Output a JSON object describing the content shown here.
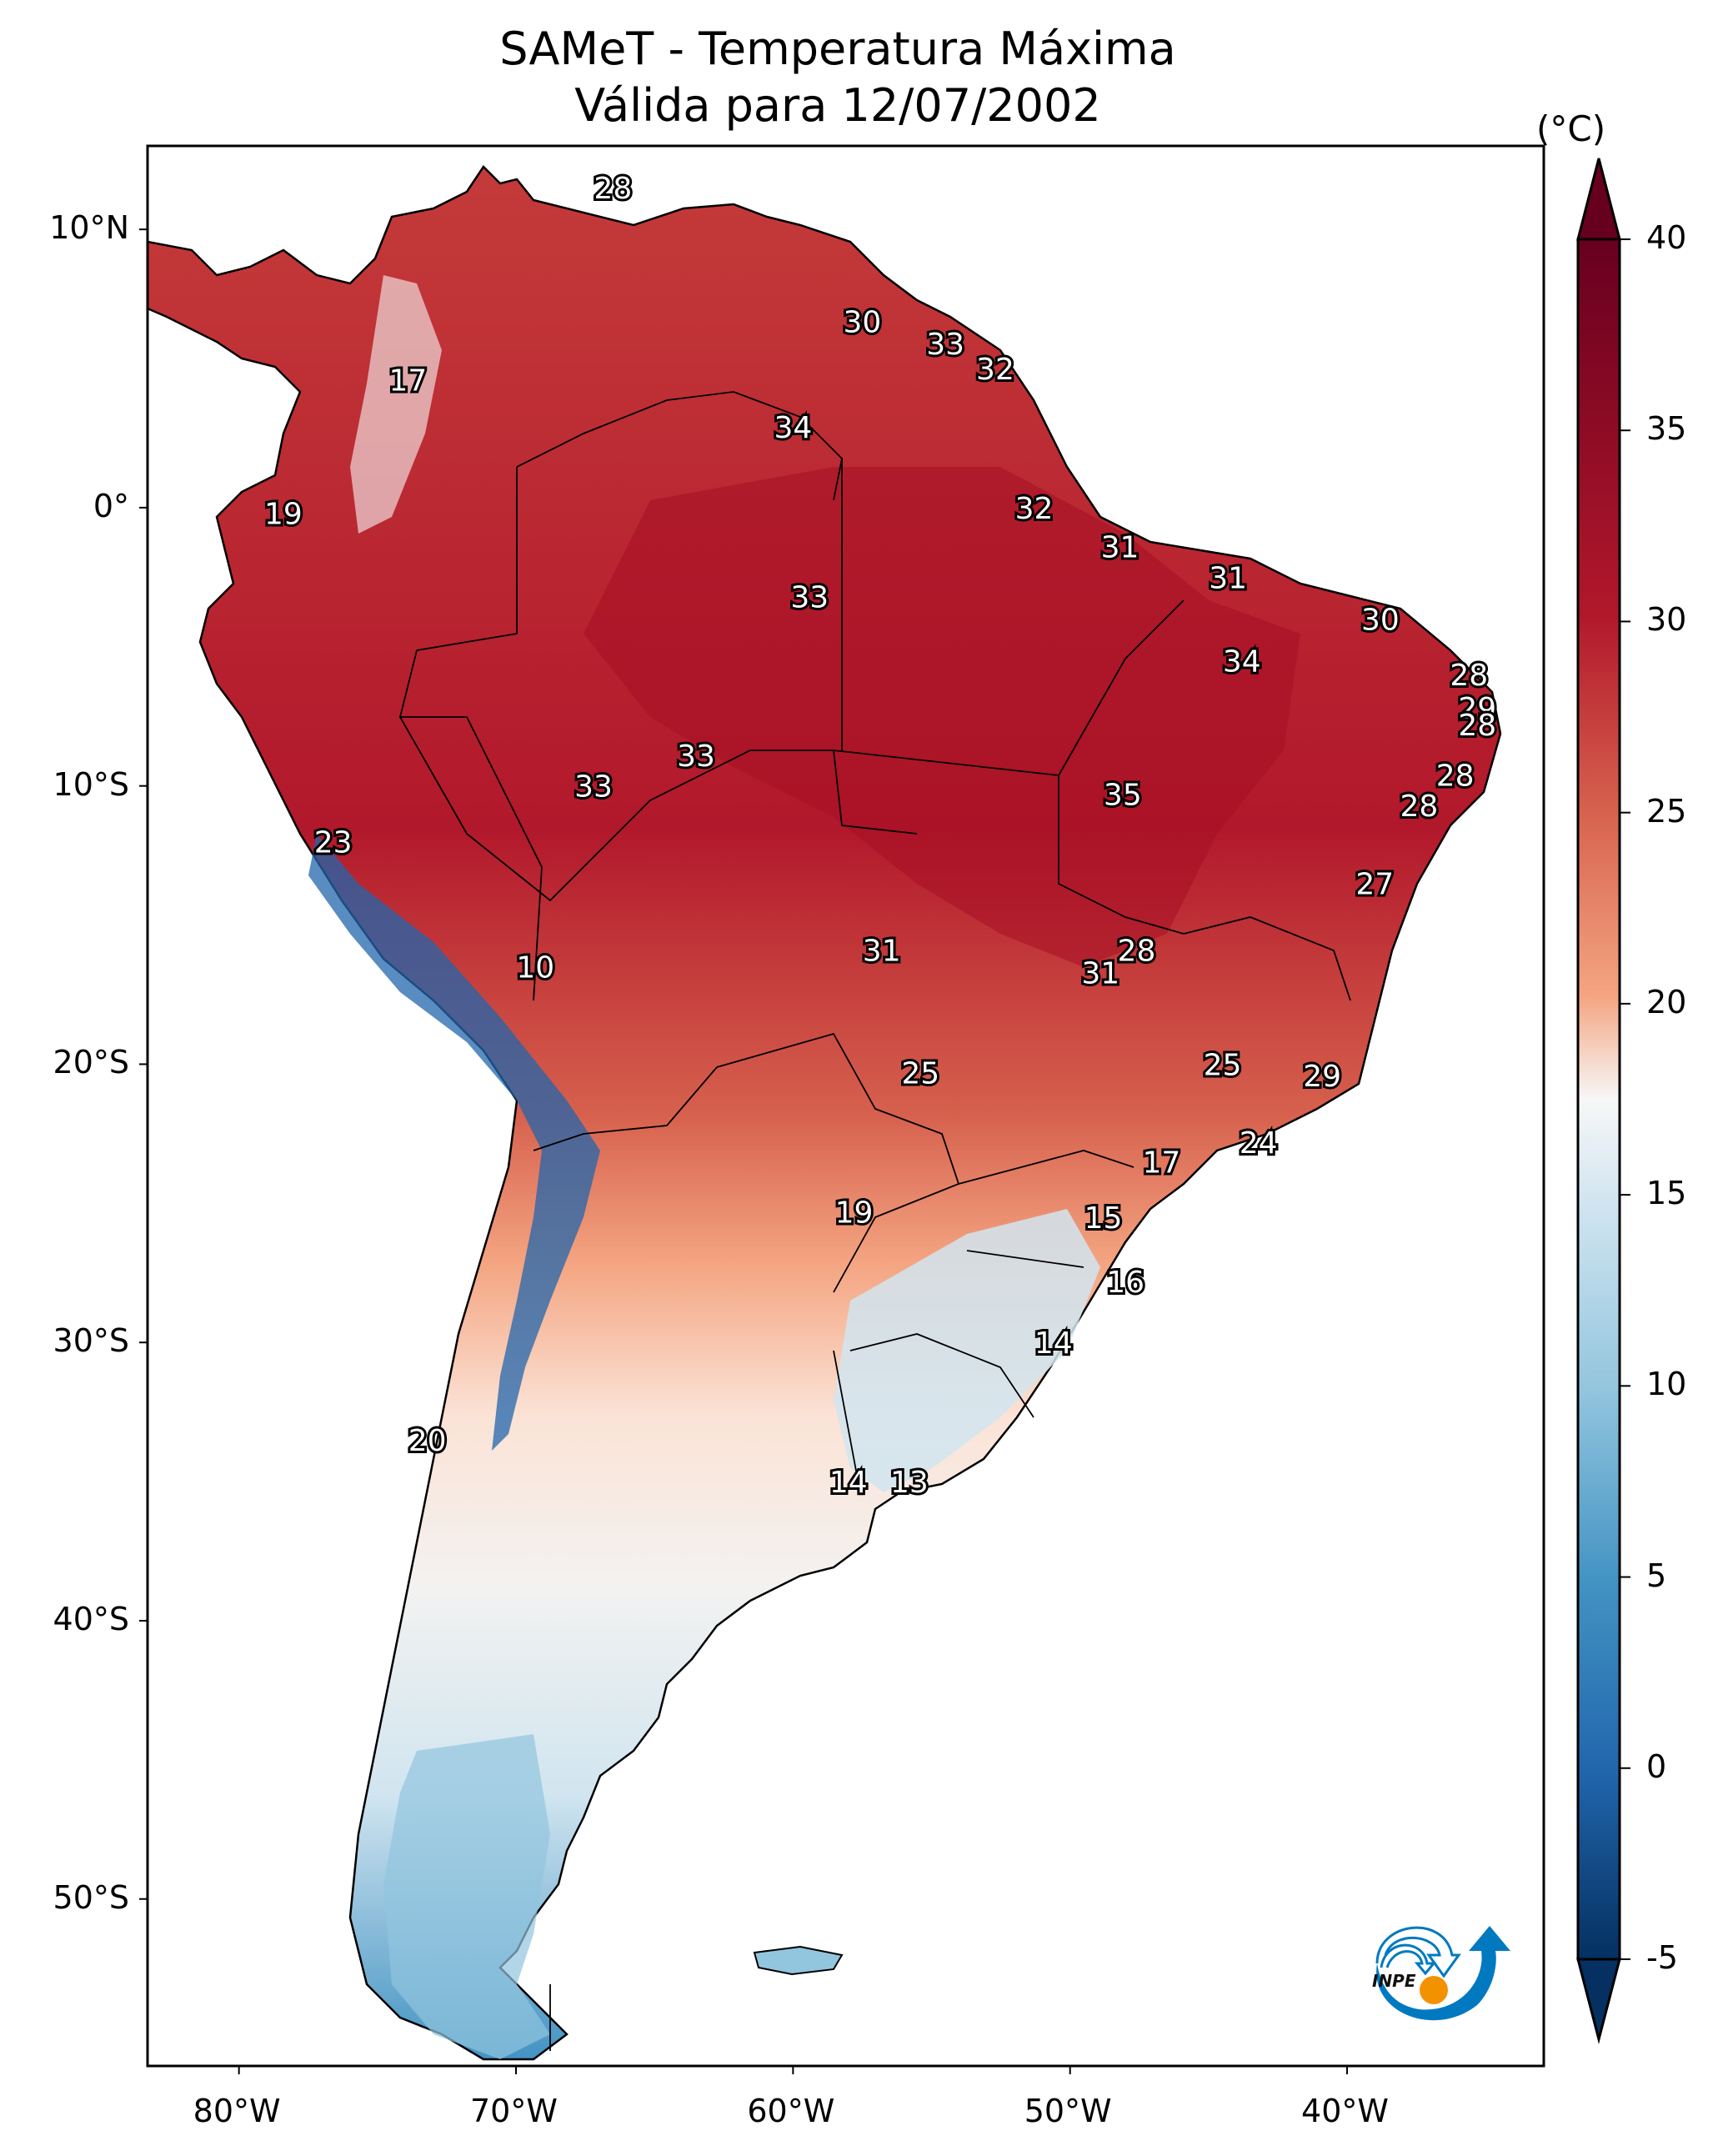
{
  "title": {
    "line1": "SAMeT - Temperatura Máxima",
    "line2": "Válida para 12/07/2002"
  },
  "chart_data": {
    "type": "map",
    "title": "SAMeT - Temperatura Máxima Válida para 12/07/2002",
    "variable": "Maximum temperature",
    "units": "(°C)",
    "region": "South America",
    "lon_range": [
      -83.3,
      -32.9
    ],
    "lat_range": [
      -56,
      13
    ],
    "x_ticks": [
      {
        "value": -80,
        "label": "80°W"
      },
      {
        "value": -70,
        "label": "70°W"
      },
      {
        "value": -60,
        "label": "60°W"
      },
      {
        "value": -50,
        "label": "50°W"
      },
      {
        "value": -40,
        "label": "40°W"
      }
    ],
    "y_ticks": [
      {
        "value": 10,
        "label": "10°N"
      },
      {
        "value": 0,
        "label": "0°"
      },
      {
        "value": -10,
        "label": "10°S"
      },
      {
        "value": -20,
        "label": "20°S"
      },
      {
        "value": -30,
        "label": "30°S"
      },
      {
        "value": -40,
        "label": "40°S"
      },
      {
        "value": -50,
        "label": "50°S"
      }
    ],
    "colorbar": {
      "label": "(°C)",
      "range": [
        -5,
        40
      ],
      "extend": "both",
      "colormap": "RdBu_r",
      "ticks": [
        {
          "value": 40,
          "label": "40"
        },
        {
          "value": 35,
          "label": "35"
        },
        {
          "value": 30,
          "label": "30"
        },
        {
          "value": 25,
          "label": "25"
        },
        {
          "value": 20,
          "label": "20"
        },
        {
          "value": 15,
          "label": "15"
        },
        {
          "value": 10,
          "label": "10"
        },
        {
          "value": 5,
          "label": "5"
        },
        {
          "value": 0,
          "label": "0"
        },
        {
          "value": -5,
          "label": "-5"
        }
      ]
    },
    "contour_labels": [
      {
        "lon": -66.5,
        "lat": 11.5,
        "value": "28"
      },
      {
        "lon": -57.5,
        "lat": 6.7,
        "value": "30"
      },
      {
        "lon": -54.5,
        "lat": 5.9,
        "value": "33"
      },
      {
        "lon": -52.7,
        "lat": 5.0,
        "value": "32"
      },
      {
        "lon": -60.0,
        "lat": 2.9,
        "value": "34"
      },
      {
        "lon": -73.9,
        "lat": 4.6,
        "value": "17"
      },
      {
        "lon": -78.4,
        "lat": -0.2,
        "value": "19"
      },
      {
        "lon": -51.3,
        "lat": 0.0,
        "value": "32"
      },
      {
        "lon": -48.2,
        "lat": -1.4,
        "value": "31"
      },
      {
        "lon": -44.3,
        "lat": -2.5,
        "value": "31"
      },
      {
        "lon": -38.8,
        "lat": -4.0,
        "value": "30"
      },
      {
        "lon": -59.4,
        "lat": -3.2,
        "value": "33"
      },
      {
        "lon": -43.8,
        "lat": -5.5,
        "value": "34"
      },
      {
        "lon": -35.6,
        "lat": -6.0,
        "value": "28"
      },
      {
        "lon": -35.3,
        "lat": -7.2,
        "value": "29"
      },
      {
        "lon": -35.3,
        "lat": -7.8,
        "value": "28"
      },
      {
        "lon": -36.1,
        "lat": -9.6,
        "value": "28"
      },
      {
        "lon": -37.4,
        "lat": -10.7,
        "value": "28"
      },
      {
        "lon": -39.0,
        "lat": -13.5,
        "value": "27"
      },
      {
        "lon": -63.5,
        "lat": -8.9,
        "value": "33"
      },
      {
        "lon": -67.2,
        "lat": -10.0,
        "value": "33"
      },
      {
        "lon": -48.1,
        "lat": -10.3,
        "value": "35"
      },
      {
        "lon": -76.6,
        "lat": -12.0,
        "value": "23"
      },
      {
        "lon": -56.8,
        "lat": -15.9,
        "value": "31"
      },
      {
        "lon": -47.6,
        "lat": -15.9,
        "value": "28"
      },
      {
        "lon": -48.9,
        "lat": -16.7,
        "value": "31"
      },
      {
        "lon": -69.3,
        "lat": -16.5,
        "value": "10"
      },
      {
        "lon": -55.4,
        "lat": -20.3,
        "value": "25"
      },
      {
        "lon": -44.5,
        "lat": -20.0,
        "value": "25"
      },
      {
        "lon": -40.9,
        "lat": -20.4,
        "value": "29"
      },
      {
        "lon": -43.2,
        "lat": -22.8,
        "value": "24"
      },
      {
        "lon": -46.7,
        "lat": -23.5,
        "value": "17"
      },
      {
        "lon": -57.8,
        "lat": -25.3,
        "value": "19"
      },
      {
        "lon": -48.8,
        "lat": -25.5,
        "value": "15"
      },
      {
        "lon": -48.0,
        "lat": -27.8,
        "value": "16"
      },
      {
        "lon": -50.6,
        "lat": -30.0,
        "value": "14"
      },
      {
        "lon": -73.2,
        "lat": -33.5,
        "value": "20"
      },
      {
        "lon": -58.0,
        "lat": -35.0,
        "value": "14"
      },
      {
        "lon": -55.8,
        "lat": -35.0,
        "value": "13"
      }
    ]
  },
  "colors": {
    "hot": "#67001f",
    "warm": "#d6604d",
    "neutral": "#f7f7f7",
    "cool": "#92c5de",
    "cold": "#053061"
  },
  "logo": {
    "name": "INPE",
    "text": "INPE"
  }
}
